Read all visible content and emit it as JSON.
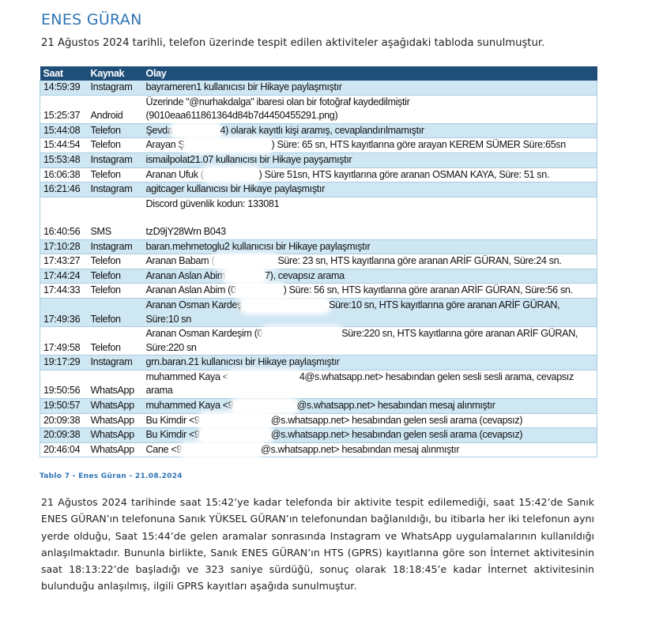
{
  "title": "ENES GÜRAN",
  "intro": "21 Ağustos 2024 tarihli, telefon üzerinde tespit edilen aktiviteler aşağıdaki tabloda sunulmuştur.",
  "table": {
    "headers": [
      "Saat",
      "Kaynak",
      "Olay"
    ],
    "rows": [
      {
        "time": "14:59:39",
        "source": "Instagram",
        "pre": "bayrameren1 kullanıcısı bir Hikaye paylaşmıştır",
        "post": "",
        "shaded": true
      },
      {
        "time": "15:25:37",
        "source": "Android",
        "pre": "Üzerinde \"@nurhakdalga\" ibaresi olan bir fotoğraf kaydedilmiştir (9010eaa611861364d84b7d4450455291.png)",
        "post": "",
        "shaded": false
      },
      {
        "time": "15:44:08",
        "source": "Telefon",
        "pre": "Şevda",
        "post": "4) olarak kayıtlı kişi aramış, cevaplandırılmamıştır",
        "shaded": true
      },
      {
        "time": "15:44:54",
        "source": "Telefon",
        "pre": "Arayan Ş",
        "post": ") Süre: 65 sn, HTS kayıtlarına göre arayan KEREM SÜMER Süre:65sn",
        "shaded": false
      },
      {
        "time": "15:53:48",
        "source": "Instagram",
        "pre": "ismailpolat21.07 kullanıcısı bir Hikaye payşamıştır",
        "post": "",
        "shaded": true
      },
      {
        "time": "16:06:38",
        "source": "Telefon",
        "pre": "Aranan Ufuk (",
        "post": ") Süre 51sn, HTS kayıtlarına göre aranan OSMAN KAYA, Süre: 51 sn.",
        "shaded": false
      },
      {
        "time": "16:21:46",
        "source": "Instagram",
        "pre": "agitcager kullanıcısı bir Hikaye paylaşmıştır",
        "post": "",
        "shaded": true
      },
      {
        "time": "16:40:56",
        "source": "SMS",
        "pre": "Discord güvenlik kodun: 133081",
        "post": "tzD9jY28Wrn B043",
        "shaded": false,
        "sms": true
      },
      {
        "time": "17:10:28",
        "source": "Instagram",
        "pre": "baran.mehmetoglu2 kullanıcısı bir Hikaye paylaşmıştır",
        "post": "",
        "shaded": true
      },
      {
        "time": "17:43:27",
        "source": "Telefon",
        "pre": "Aranan Babam (",
        "post": "Süre: 23 sn, HTS kayıtlarına göre aranan ARİF GÜRAN, Süre:24 sn.",
        "shaded": false
      },
      {
        "time": "17:44:24",
        "source": "Telefon",
        "pre": "Aranan Aslan Abim",
        "post": "7), cevapsız arama",
        "shaded": true
      },
      {
        "time": "17:44:33",
        "source": "Telefon",
        "pre": "Aranan Aslan Abim (0",
        "post": ") Süre: 56 sn, HTS kayıtlarına göre aranan ARİF GÜRAN, Süre:56 sn.",
        "shaded": false
      },
      {
        "time": "17:49:36",
        "source": "Telefon",
        "pre": "Aranan Osman Kardeş",
        "post": "Süre:10 sn, HTS kayıtlarına göre aranan ARİF GÜRAN, Süre:10 sn",
        "shaded": true
      },
      {
        "time": "17:49:58",
        "source": "Telefon",
        "pre": "Aranan Osman Kardeşim (0",
        "post": "Süre:220 sn, HTS kayıtlarına göre aranan ARİF GÜRAN, Süre:220 sn",
        "shaded": false
      },
      {
        "time": "19:17:29",
        "source": "Instagram",
        "pre": "grn.baran.21 kullanıcısı bir Hikaye paylaşmıştır",
        "post": "",
        "shaded": true
      },
      {
        "time": "19:50:56",
        "source": "WhatsApp",
        "pre": "muhammed Kaya <",
        "post": "4@s.whatsapp.net> hesabından gelen sesli sesli arama, cevapsız arama",
        "shaded": false
      },
      {
        "time": "19:50:57",
        "source": "WhatsApp",
        "pre": "muhammed Kaya <9",
        "post": "@s.whatsapp.net> hesabından mesaj alınmıştır",
        "shaded": true
      },
      {
        "time": "20:09:38",
        "source": "WhatsApp",
        "pre": "Bu Kimdir <9",
        "post": "@s.whatsapp.net> hesabından gelen sesli arama (cevapsız)",
        "shaded": false
      },
      {
        "time": "20:09:38",
        "source": "WhatsApp",
        "pre": "Bu Kimdir <9",
        "post": "@s.whatsapp.net> hesabından gelen sesli arama (cevapsız)",
        "shaded": true
      },
      {
        "time": "20:46:04",
        "source": "WhatsApp",
        "pre": "Cane <9",
        "post": "@s.whatsapp.net> hesabından mesaj alınmıştır",
        "shaded": false
      }
    ]
  },
  "caption": "Tablo 7 - Enes Güran - 21.08.2024",
  "paragraph": "21 Ağustos 2024 tarihinde saat 15:42’ye kadar telefonda bir aktivite tespit edilemediği, saat 15:42’de Sanık ENES GÜRAN’ın telefonuna Sanık YÜKSEL GÜRAN’ın telefonundan bağlanıldığı, bu itibarla her iki telefonun aynı yerde olduğu, Saat 15:44’de gelen aramalar sonrasında Instagram ve WhatsApp uygulamalarının kullanıldığı anlaşılmaktadır. Bununla birlikte, Sanık ENES GÜRAN’ın HTS (GPRS) kayıtlarına göre son İnternet aktivitesinin saat 18:13:22’de başladığı ve 323 saniye sürdüğü, sonuç olarak 18:18:45’e kadar İnternet aktivitesinin bulunduğu anlaşılmış, ilgili GPRS kayıtları aşağıda sunulmuştur."
}
